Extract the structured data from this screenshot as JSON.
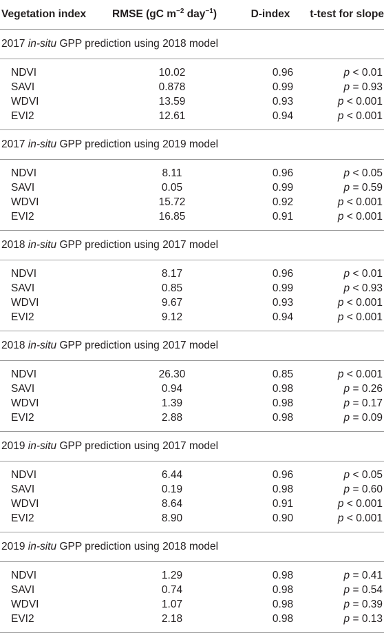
{
  "header": {
    "col1": "Vegetation index",
    "col2_prefix": "RMSE (gC m",
    "col2_sup1": "−2",
    "col2_mid": " day",
    "col2_sup2": "−1",
    "col2_suffix": ")",
    "col3": "D-index",
    "col4": "t-test for slope"
  },
  "groups": [
    {
      "prefix": "2017 ",
      "italic": "in-situ",
      "suffix": " GPP prediction using 2018 model",
      "rows": [
        {
          "index": "NDVI",
          "rmse": "10.02",
          "d": "0.96",
          "p": "p",
          "rel": " < 0.01"
        },
        {
          "index": "SAVI",
          "rmse": "0.878",
          "d": "0.99",
          "p": "p",
          "rel": " = 0.93"
        },
        {
          "index": "WDVI",
          "rmse": "13.59",
          "d": "0.93",
          "p": "p",
          "rel": " < 0.001"
        },
        {
          "index": "EVI2",
          "rmse": "12.61",
          "d": "0.94",
          "p": "p",
          "rel": " < 0.001"
        }
      ]
    },
    {
      "prefix": "2017 ",
      "italic": "in-situ",
      "suffix": " GPP prediction using 2019 model",
      "rows": [
        {
          "index": "NDVI",
          "rmse": "8.11",
          "d": "0.96",
          "p": "p",
          "rel": " < 0.05"
        },
        {
          "index": "SAVI",
          "rmse": "0.05",
          "d": "0.99",
          "p": "p",
          "rel": " = 0.59"
        },
        {
          "index": "WDVI",
          "rmse": "15.72",
          "d": "0.92",
          "p": "p",
          "rel": " < 0.001"
        },
        {
          "index": "EVI2",
          "rmse": "16.85",
          "d": "0.91",
          "p": "p",
          "rel": " < 0.001"
        }
      ]
    },
    {
      "prefix": "2018 ",
      "italic": "in-situ",
      "suffix": " GPP prediction using 2017 model",
      "rows": [
        {
          "index": "NDVI",
          "rmse": "8.17",
          "d": "0.96",
          "p": "p",
          "rel": " < 0.01"
        },
        {
          "index": "SAVI",
          "rmse": "0.85",
          "d": "0.99",
          "p": "p",
          "rel": " < 0.93"
        },
        {
          "index": "WDVI",
          "rmse": "9.67",
          "d": "0.93",
          "p": "p",
          "rel": " < 0.001"
        },
        {
          "index": "EVI2",
          "rmse": "9.12",
          "d": "0.94",
          "p": "p",
          "rel": " < 0.001"
        }
      ]
    },
    {
      "prefix": "2018 ",
      "italic": "in-situ",
      "suffix": " GPP prediction using 2017 model",
      "rows": [
        {
          "index": "NDVI",
          "rmse": "26.30",
          "d": "0.85",
          "p": "p",
          "rel": " < 0.001"
        },
        {
          "index": "SAVI",
          "rmse": "0.94",
          "d": "0.98",
          "p": "p",
          "rel": " = 0.26"
        },
        {
          "index": "WDVI",
          "rmse": "1.39",
          "d": "0.98",
          "p": "p",
          "rel": " = 0.17"
        },
        {
          "index": "EVI2",
          "rmse": "2.88",
          "d": "0.98",
          "p": "p",
          "rel": " = 0.09"
        }
      ]
    },
    {
      "prefix": "2019 ",
      "italic": "in-situ",
      "suffix": " GPP prediction using 2017 model",
      "rows": [
        {
          "index": "NDVI",
          "rmse": "6.44",
          "d": "0.96",
          "p": "p",
          "rel": " < 0.05"
        },
        {
          "index": "SAVI",
          "rmse": "0.19",
          "d": "0.98",
          "p": "p",
          "rel": " = 0.60"
        },
        {
          "index": "WDVI",
          "rmse": "8.64",
          "d": "0.91",
          "p": "p",
          "rel": " < 0.001"
        },
        {
          "index": "EVI2",
          "rmse": "8.90",
          "d": "0.90",
          "p": "p",
          "rel": " < 0.001"
        }
      ]
    },
    {
      "prefix": "2019 ",
      "italic": "in-situ",
      "suffix": " GPP prediction using 2018 model",
      "rows": [
        {
          "index": "NDVI",
          "rmse": "1.29",
          "d": "0.98",
          "p": "p",
          "rel": " = 0.41"
        },
        {
          "index": "SAVI",
          "rmse": "0.74",
          "d": "0.98",
          "p": "p",
          "rel": " = 0.54"
        },
        {
          "index": "WDVI",
          "rmse": "1.07",
          "d": "0.98",
          "p": "p",
          "rel": " = 0.39"
        },
        {
          "index": "EVI2",
          "rmse": "2.18",
          "d": "0.98",
          "p": "p",
          "rel": " = 0.13"
        }
      ]
    }
  ]
}
